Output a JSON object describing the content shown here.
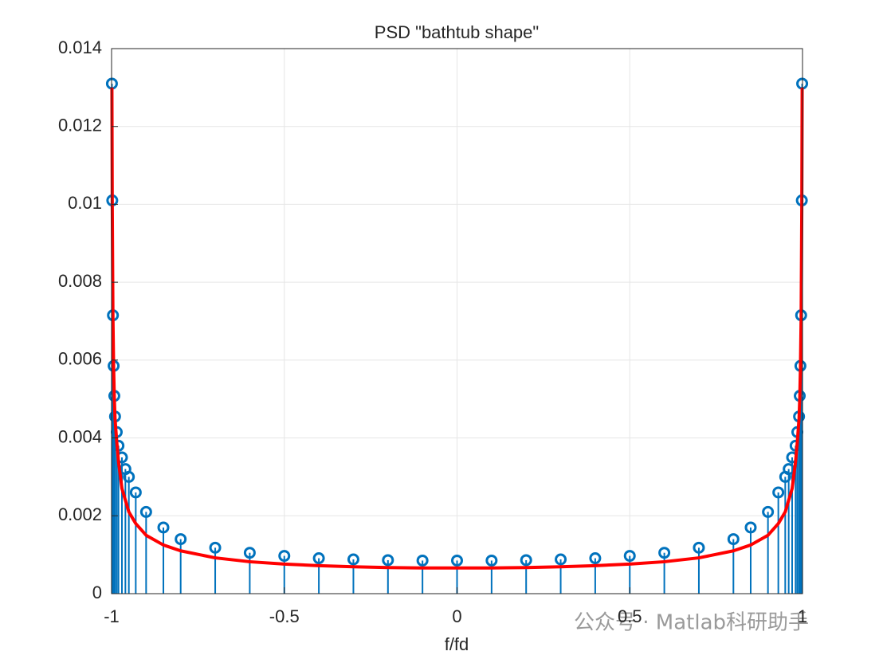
{
  "chart_data": {
    "type": "stem",
    "title": "PSD  \"bathtub shape\"",
    "xlabel": "f/fd",
    "x": [
      -0.999,
      -0.998,
      -0.996,
      -0.994,
      -0.992,
      -0.99,
      -0.985,
      -0.98,
      -0.97,
      -0.96,
      -0.95,
      -0.93,
      -0.9,
      -0.85,
      -0.8,
      -0.7,
      -0.6,
      -0.5,
      -0.4,
      -0.3,
      -0.2,
      -0.1,
      0,
      0.1,
      0.2,
      0.3,
      0.4,
      0.5,
      0.6,
      0.7,
      0.8,
      0.85,
      0.9,
      0.93,
      0.95,
      0.96,
      0.97,
      0.98,
      0.985,
      0.99,
      0.992,
      0.994,
      0.996,
      0.998,
      0.999
    ],
    "series": [
      {
        "color": "#0072bd",
        "style": "stem",
        "marker": "o",
        "values": [
          0.0131,
          0.0101,
          0.00715,
          0.00585,
          0.00508,
          0.00455,
          0.00415,
          0.0038,
          0.0035,
          0.0032,
          0.003,
          0.0026,
          0.0021,
          0.0017,
          0.0014,
          0.00118,
          0.00105,
          0.00097,
          0.00091,
          0.00088,
          0.00086,
          0.00085,
          0.00085,
          0.00085,
          0.00086,
          0.00088,
          0.00091,
          0.00097,
          0.00105,
          0.00118,
          0.0014,
          0.0017,
          0.0021,
          0.0026,
          0.003,
          0.0032,
          0.0035,
          0.0038,
          0.00415,
          0.00455,
          0.00508,
          0.00585,
          0.00715,
          0.0101,
          0.0131
        ]
      },
      {
        "color": "#ff0000",
        "style": "line",
        "values": [
          0.013,
          0.01,
          0.0071,
          0.0058,
          0.005,
          0.0045,
          0.0039,
          0.0034,
          0.0027,
          0.0024,
          0.0021,
          0.0018,
          0.0015,
          0.00125,
          0.0011,
          0.00092,
          0.00082,
          0.00076,
          0.00072,
          0.00069,
          0.00067,
          0.00066,
          0.00066,
          0.00066,
          0.00067,
          0.00069,
          0.00072,
          0.00076,
          0.00082,
          0.00092,
          0.0011,
          0.00125,
          0.0015,
          0.0018,
          0.0021,
          0.0024,
          0.0027,
          0.0034,
          0.0039,
          0.0045,
          0.005,
          0.0058,
          0.0071,
          0.01,
          0.013
        ]
      }
    ],
    "xlim": [
      -1,
      1
    ],
    "xticks": [
      -1,
      -0.5,
      0,
      0.5,
      1
    ],
    "ylim": [
      0,
      0.014
    ],
    "yticks": [
      0,
      0.002,
      0.004,
      0.006,
      0.008,
      0.01,
      0.012,
      0.014
    ],
    "grid": true
  },
  "watermark": "公众号 · Matlab科研助手"
}
